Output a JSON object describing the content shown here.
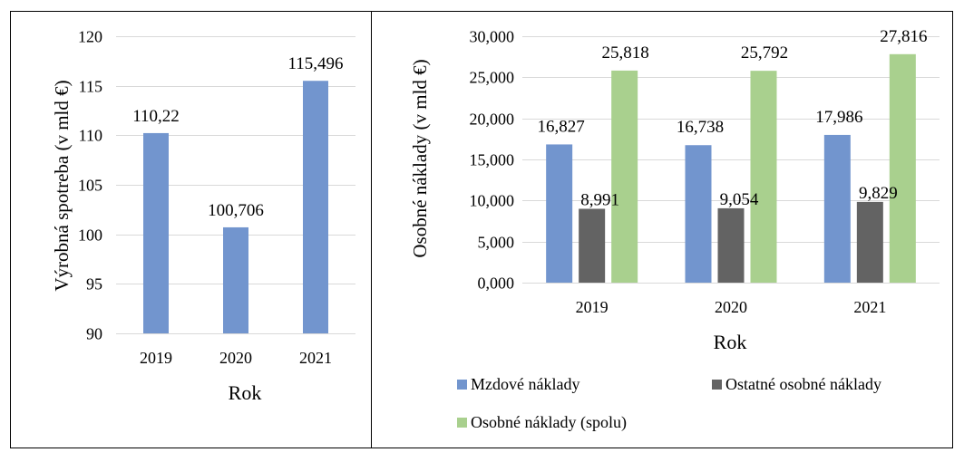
{
  "charts": {
    "left": {
      "type": "bar",
      "xlabel": "Rok",
      "ylabel": "Výrobná spotreba (v mld €)",
      "categories": [
        "2019",
        "2020",
        "2021"
      ],
      "values": [
        110.22,
        100.706,
        115.496
      ],
      "value_labels": [
        "110,22",
        "100,706",
        "115,496"
      ],
      "ylim": [
        90,
        120
      ],
      "yticks": [
        90,
        95,
        100,
        105,
        110,
        115,
        120
      ],
      "ytick_labels": [
        "90",
        "95",
        "100",
        "105",
        "110",
        "115",
        "120"
      ],
      "grid": true,
      "color": "#7295ce"
    },
    "right": {
      "type": "bar",
      "xlabel": "Rok",
      "ylabel": "Osobné náklady (v mld €)",
      "categories": [
        "2019",
        "2020",
        "2021"
      ],
      "series": [
        {
          "name": "Mzdové náklady",
          "values": [
            16.827,
            16.738,
            17.986
          ],
          "value_labels": [
            "16,827",
            "16,738",
            "17,986"
          ],
          "color": "#7295ce"
        },
        {
          "name": "Ostatné osobné náklady",
          "values": [
            8.991,
            9.054,
            9.829
          ],
          "value_labels": [
            "8,991",
            "9,054",
            "9,829"
          ],
          "color": "#636363"
        },
        {
          "name": "Osobné náklady (spolu)",
          "values": [
            25.818,
            25.792,
            27.816
          ],
          "value_labels": [
            "25,818",
            "25,792",
            "27,816"
          ],
          "color": "#a9d08e"
        }
      ],
      "ylim": [
        0,
        30
      ],
      "yticks": [
        0,
        5,
        10,
        15,
        20,
        25,
        30
      ],
      "ytick_labels": [
        "0,000",
        "5,000",
        "10,000",
        "15,000",
        "20,000",
        "25,000",
        "30,000"
      ],
      "grid": true,
      "legend_position": "bottom"
    }
  },
  "chart_data": [
    {
      "type": "bar",
      "categories": [
        "2019",
        "2020",
        "2021"
      ],
      "values": [
        110.22,
        100.706,
        115.496
      ],
      "xlabel": "Rok",
      "ylabel": "Výrobná spotreba (v mld €)",
      "ylim": [
        90,
        120
      ]
    },
    {
      "type": "bar",
      "categories": [
        "2019",
        "2020",
        "2021"
      ],
      "series": [
        {
          "name": "Mzdové náklady",
          "values": [
            16.827,
            16.738,
            17.986
          ]
        },
        {
          "name": "Ostatné osobné náklady",
          "values": [
            8.991,
            9.054,
            9.829
          ]
        },
        {
          "name": "Osobné náklady (spolu)",
          "values": [
            25.818,
            25.792,
            27.816
          ]
        }
      ],
      "xlabel": "Rok",
      "ylabel": "Osobné náklady (v mld €)",
      "ylim": [
        0,
        30
      ],
      "legend": "bottom"
    }
  ]
}
